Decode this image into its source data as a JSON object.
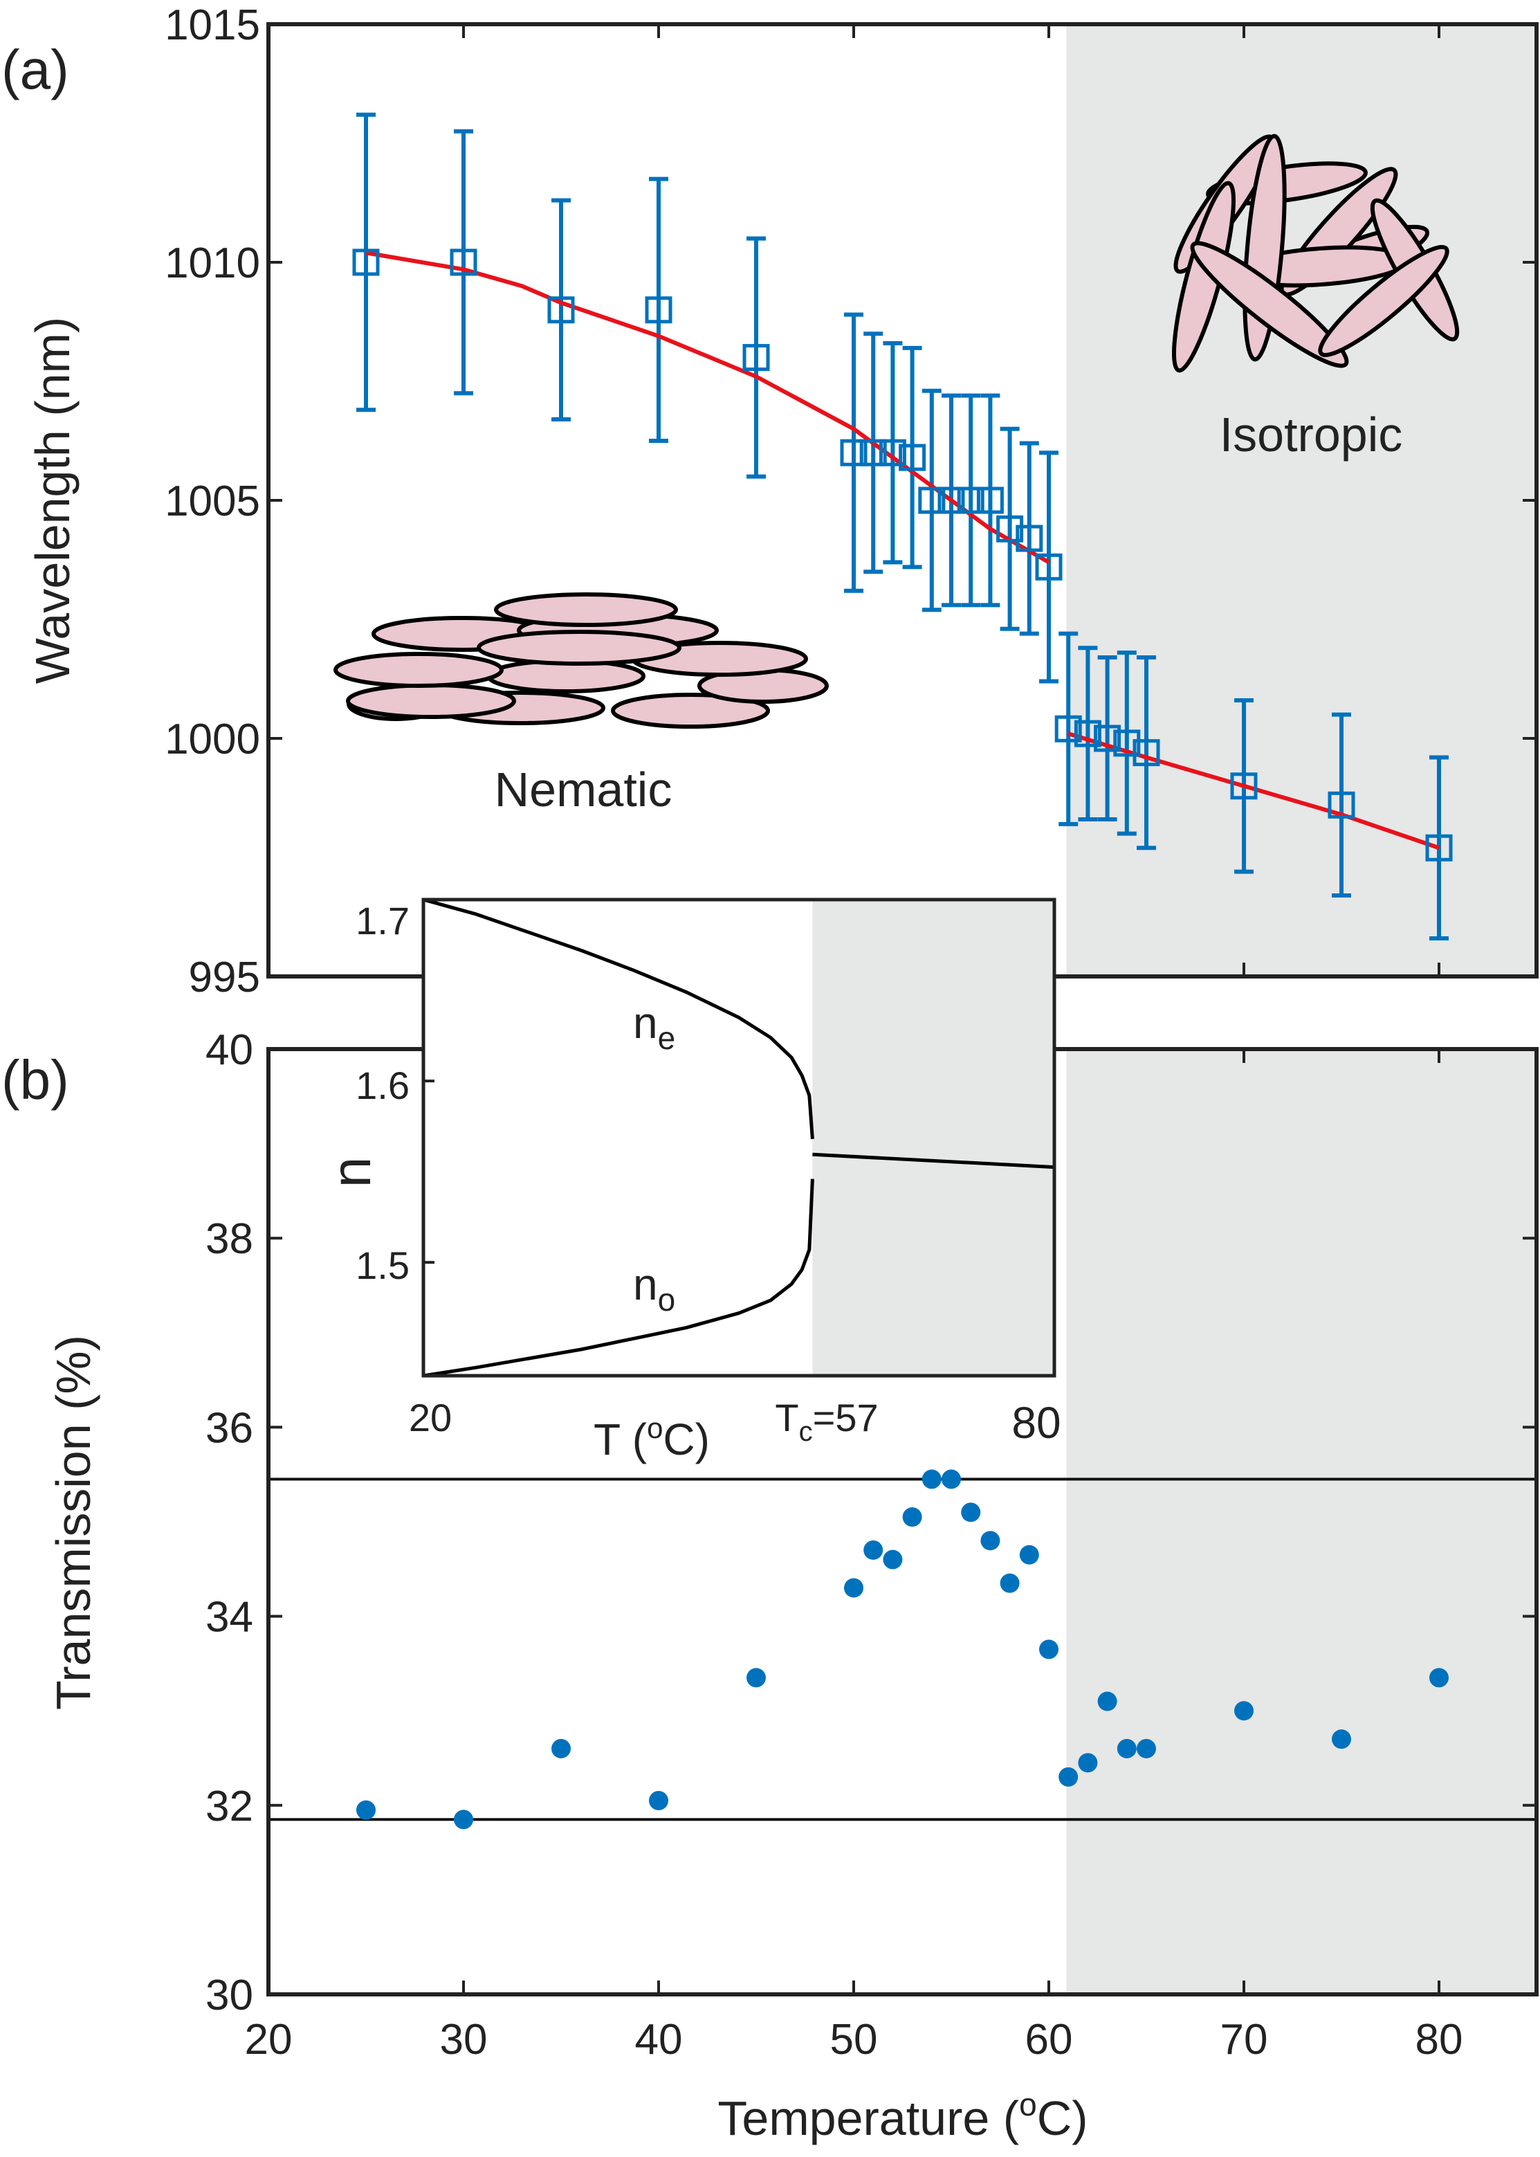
{
  "chart_data": [
    {
      "id": "a",
      "panel_label": "(a)",
      "type": "scatter",
      "ylabel": "Wavelength (nm)",
      "xlim": [
        20,
        85
      ],
      "ylim": [
        995,
        1015
      ],
      "yticks": [
        "995",
        "1000",
        "1005",
        "1010",
        "1015"
      ],
      "isotropic_from_x": 60.9,
      "series": [
        {
          "name": "measured",
          "marker": "open-square",
          "color": "#0072BD",
          "x": [
            25,
            30,
            35,
            40,
            45,
            50,
            51,
            52,
            53,
            54,
            55,
            56,
            57,
            58,
            59,
            60,
            61,
            62,
            63,
            64,
            65,
            70,
            75,
            80
          ],
          "y": [
            1010.0,
            1010.0,
            1009.0,
            1009.0,
            1008.0,
            1006.0,
            1006.0,
            1006.0,
            1005.9,
            1005.0,
            1005.0,
            1005.0,
            1005.0,
            1004.4,
            1004.2,
            1003.6,
            1000.2,
            1000.1,
            1000.0,
            999.9,
            999.7,
            999.0,
            998.6,
            997.7
          ],
          "err": [
            3.1,
            2.75,
            2.3,
            2.75,
            2.5,
            2.9,
            2.5,
            2.3,
            2.3,
            2.3,
            2.2,
            2.2,
            2.2,
            2.1,
            2.0,
            2.4,
            2.0,
            1.8,
            1.7,
            1.9,
            2.0,
            1.8,
            1.9,
            1.9
          ]
        },
        {
          "name": "fit-nematic",
          "type": "line",
          "color": "#E8121B",
          "x": [
            25,
            30,
            33,
            35,
            40,
            45,
            50,
            54,
            57,
            60
          ],
          "y": [
            1010.2,
            1009.85,
            1009.5,
            1009.15,
            1008.45,
            1007.6,
            1006.5,
            1005.3,
            1004.4,
            1003.7
          ]
        },
        {
          "name": "fit-isotropic",
          "type": "line",
          "color": "#E8121B",
          "x": [
            61,
            65,
            70,
            75,
            80
          ],
          "y": [
            1000.1,
            999.6,
            999.0,
            998.4,
            997.7
          ]
        }
      ],
      "annotations": [
        "Nematic",
        "Isotropic"
      ]
    },
    {
      "id": "b",
      "panel_label": "(b)",
      "type": "scatter",
      "xlabel": "Temperature (",
      "xlabel_sup": "o",
      "xlabel_end": "C)",
      "ylabel": "Transmission (%)",
      "xlim": [
        20,
        85
      ],
      "ylim": [
        30,
        40
      ],
      "xticks": [
        "20",
        "30",
        "40",
        "50",
        "60",
        "70",
        "80"
      ],
      "yticks": [
        "30",
        "32",
        "34",
        "36",
        "38",
        "40"
      ],
      "isotropic_from_x": 60.9,
      "hlines": [
        35.45,
        31.85
      ],
      "series": [
        {
          "name": "transmission",
          "marker": "filled-circle",
          "color": "#0072BD",
          "x": [
            25,
            30,
            35,
            40,
            45,
            50,
            51,
            52,
            53,
            54,
            55,
            56,
            57,
            58,
            59,
            60,
            61,
            62,
            63,
            64,
            65,
            70,
            75,
            80
          ],
          "y": [
            31.95,
            31.85,
            32.6,
            32.05,
            33.35,
            34.3,
            34.7,
            34.6,
            35.05,
            35.45,
            35.45,
            35.1,
            34.8,
            34.35,
            34.65,
            33.65,
            32.3,
            32.45,
            33.1,
            32.6,
            32.6,
            33.0,
            32.7,
            33.35
          ]
        }
      ]
    },
    {
      "id": "inset",
      "type": "line",
      "ylabel": "n",
      "xlabel": "T (",
      "xlabel_sup": "o",
      "xlabel_end": "C)",
      "xlim": [
        20,
        80
      ],
      "ylim": [
        1.4375,
        1.7
      ],
      "tc": 57,
      "xtick_20": "20",
      "xtick_tc_main": "T",
      "xtick_tc_sub": "c",
      "xtick_tc_end": "=57",
      "xtick_80": "80",
      "yticks": [
        "1.5",
        "1.6",
        "1.7"
      ],
      "label_ne_main": "n",
      "label_ne_sub": "e",
      "label_no_main": "n",
      "label_no_sub": "o",
      "series": [
        {
          "name": "n_e",
          "x": [
            20,
            25,
            30,
            35,
            40,
            45,
            50,
            53,
            55,
            56,
            56.7,
            57
          ],
          "y": [
            1.7,
            1.692,
            1.682,
            1.672,
            1.661,
            1.649,
            1.635,
            1.624,
            1.613,
            1.603,
            1.592,
            1.568
          ]
        },
        {
          "name": "n_o",
          "x": [
            20,
            25,
            30,
            35,
            40,
            45,
            50,
            53,
            55,
            56,
            56.7,
            57
          ],
          "y": [
            1.4375,
            1.442,
            1.447,
            1.452,
            1.458,
            1.464,
            1.472,
            1.479,
            1.488,
            1.496,
            1.507,
            1.546
          ]
        },
        {
          "name": "n_iso",
          "x": [
            57,
            80
          ],
          "y": [
            1.5595,
            1.5525
          ]
        }
      ]
    }
  ],
  "labels": {
    "nematic": "Nematic",
    "isotropic": "Isotropic"
  }
}
